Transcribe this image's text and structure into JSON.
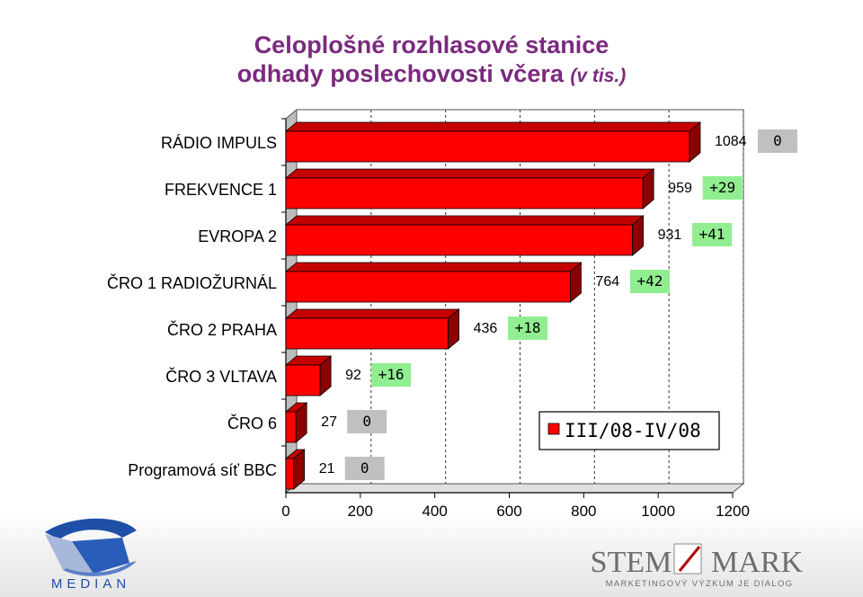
{
  "title_line1": "Celoplošné rozhlasové stanice",
  "title_line2_main": "odhady poslechovosti včera",
  "title_line2_note": "(v tis.)",
  "chart_data": {
    "type": "bar",
    "orientation": "horizontal",
    "categories": [
      "RÁDIO IMPULS",
      "FREKVENCE 1",
      "EVROPA 2",
      "ČRO 1 RADIOŽURNÁL",
      "ČRO 2 PRAHA",
      "ČRO 3 VLTAVA",
      "ČRO 6",
      "Programová síť BBC"
    ],
    "values": [
      1084,
      959,
      931,
      764,
      436,
      92,
      27,
      21
    ],
    "changes": [
      "0",
      "+29",
      "+41",
      "+42",
      "+18",
      "+16",
      "0",
      "0"
    ],
    "change_colors": [
      "#c0c0c0",
      "#90ee90",
      "#90ee90",
      "#90ee90",
      "#90ee90",
      "#90ee90",
      "#c0c0c0",
      "#c0c0c0"
    ],
    "xlim": [
      0,
      1200
    ],
    "xticks": [
      "0",
      "200",
      "400",
      "600",
      "800",
      "1000",
      "1200"
    ],
    "grid": "dashed vertical",
    "bar_color": "#ff0000",
    "legend": {
      "label": "III/08-IV/08",
      "position": "bottom-right",
      "color": "#ff0000"
    }
  },
  "logos": {
    "median_text": "MEDIAN",
    "stem_left": "STEM",
    "stem_right": "MARK",
    "stem_tagline": "MARKETINGOVÝ VÝZKUM JE DIALOG"
  }
}
